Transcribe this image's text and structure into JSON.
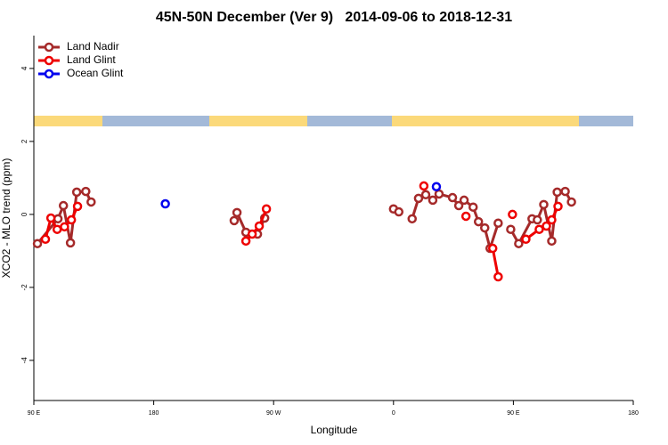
{
  "chart_data": {
    "type": "line",
    "title": "45N-50N December (Ver 9)   2014-09-06 to 2018-12-31",
    "x_label": "Longitude",
    "y_label": "XCO2 - MLO trend (ppm)",
    "xlim": [
      90,
      540
    ],
    "ylim": [
      -5.1,
      4.9
    ],
    "xticks": [
      {
        "value": 90,
        "label": "90 E"
      },
      180,
      {
        "value": 270,
        "label": "90 W"
      },
      {
        "value": 360,
        "label": "0"
      },
      {
        "value": 450,
        "label": "90 E"
      },
      {
        "value": 540,
        "label": "180"
      }
    ],
    "yticks": [
      -4,
      -2,
      0,
      2,
      4
    ],
    "legend": "top-left",
    "series": [
      {
        "name": "Land Nadir",
        "color": "#a52a2a",
        "x": [
          92.7,
          108.1,
          112.2,
          117.5,
          122.2,
          129,
          133,
          null,
          240.4,
          242.5,
          249.2,
          257.9,
          263.3,
          null,
          360,
          364,
          null,
          374,
          378.8,
          384.2,
          389.5,
          394.2,
          404.3,
          409,
          413,
          419.8,
          423.8,
          428.5,
          432.5,
          438.6,
          null,
          448,
          454,
          464,
          468,
          472.8,
          478.8,
          482.9,
          488.9,
          493.6
        ],
        "values": [
          -0.8,
          -0.12,
          0.24,
          -0.78,
          0.61,
          0.63,
          0.34,
          null,
          -0.17,
          0.05,
          -0.49,
          -0.54,
          -0.1,
          null,
          0.15,
          0.07,
          null,
          -0.12,
          0.44,
          0.54,
          0.39,
          0.56,
          0.46,
          0.24,
          0.39,
          0.2,
          -0.2,
          -0.37,
          -0.93,
          -0.24,
          null,
          -0.41,
          -0.8,
          -0.12,
          -0.15,
          0.27,
          -0.73,
          0.61,
          0.63,
          0.34
        ]
      },
      {
        "name": "Land Glint",
        "color": "#ee0000",
        "x": [
          98.7,
          102.8,
          107.5,
          113,
          118.2,
          122.8,
          null,
          249.2,
          253.9,
          259.2,
          264.6,
          null,
          382.8,
          null,
          414.4,
          null,
          434.5,
          438.6,
          null,
          449.3,
          null,
          459.4,
          469.4,
          474.8,
          478.8,
          483.5
        ],
        "values": [
          -0.68,
          -0.1,
          -0.41,
          -0.34,
          -0.15,
          0.22,
          null,
          -0.73,
          -0.54,
          -0.32,
          0.15,
          null,
          0.78,
          null,
          -0.05,
          null,
          -0.93,
          -1.71,
          null,
          0.0,
          null,
          -0.68,
          -0.41,
          -0.32,
          -0.15,
          0.22
        ]
      },
      {
        "name": "Ocean Glint",
        "color": "#0000ee",
        "x": [
          188.7,
          null,
          392.2
        ],
        "values": [
          0.29,
          null,
          0.76
        ]
      }
    ]
  }
}
